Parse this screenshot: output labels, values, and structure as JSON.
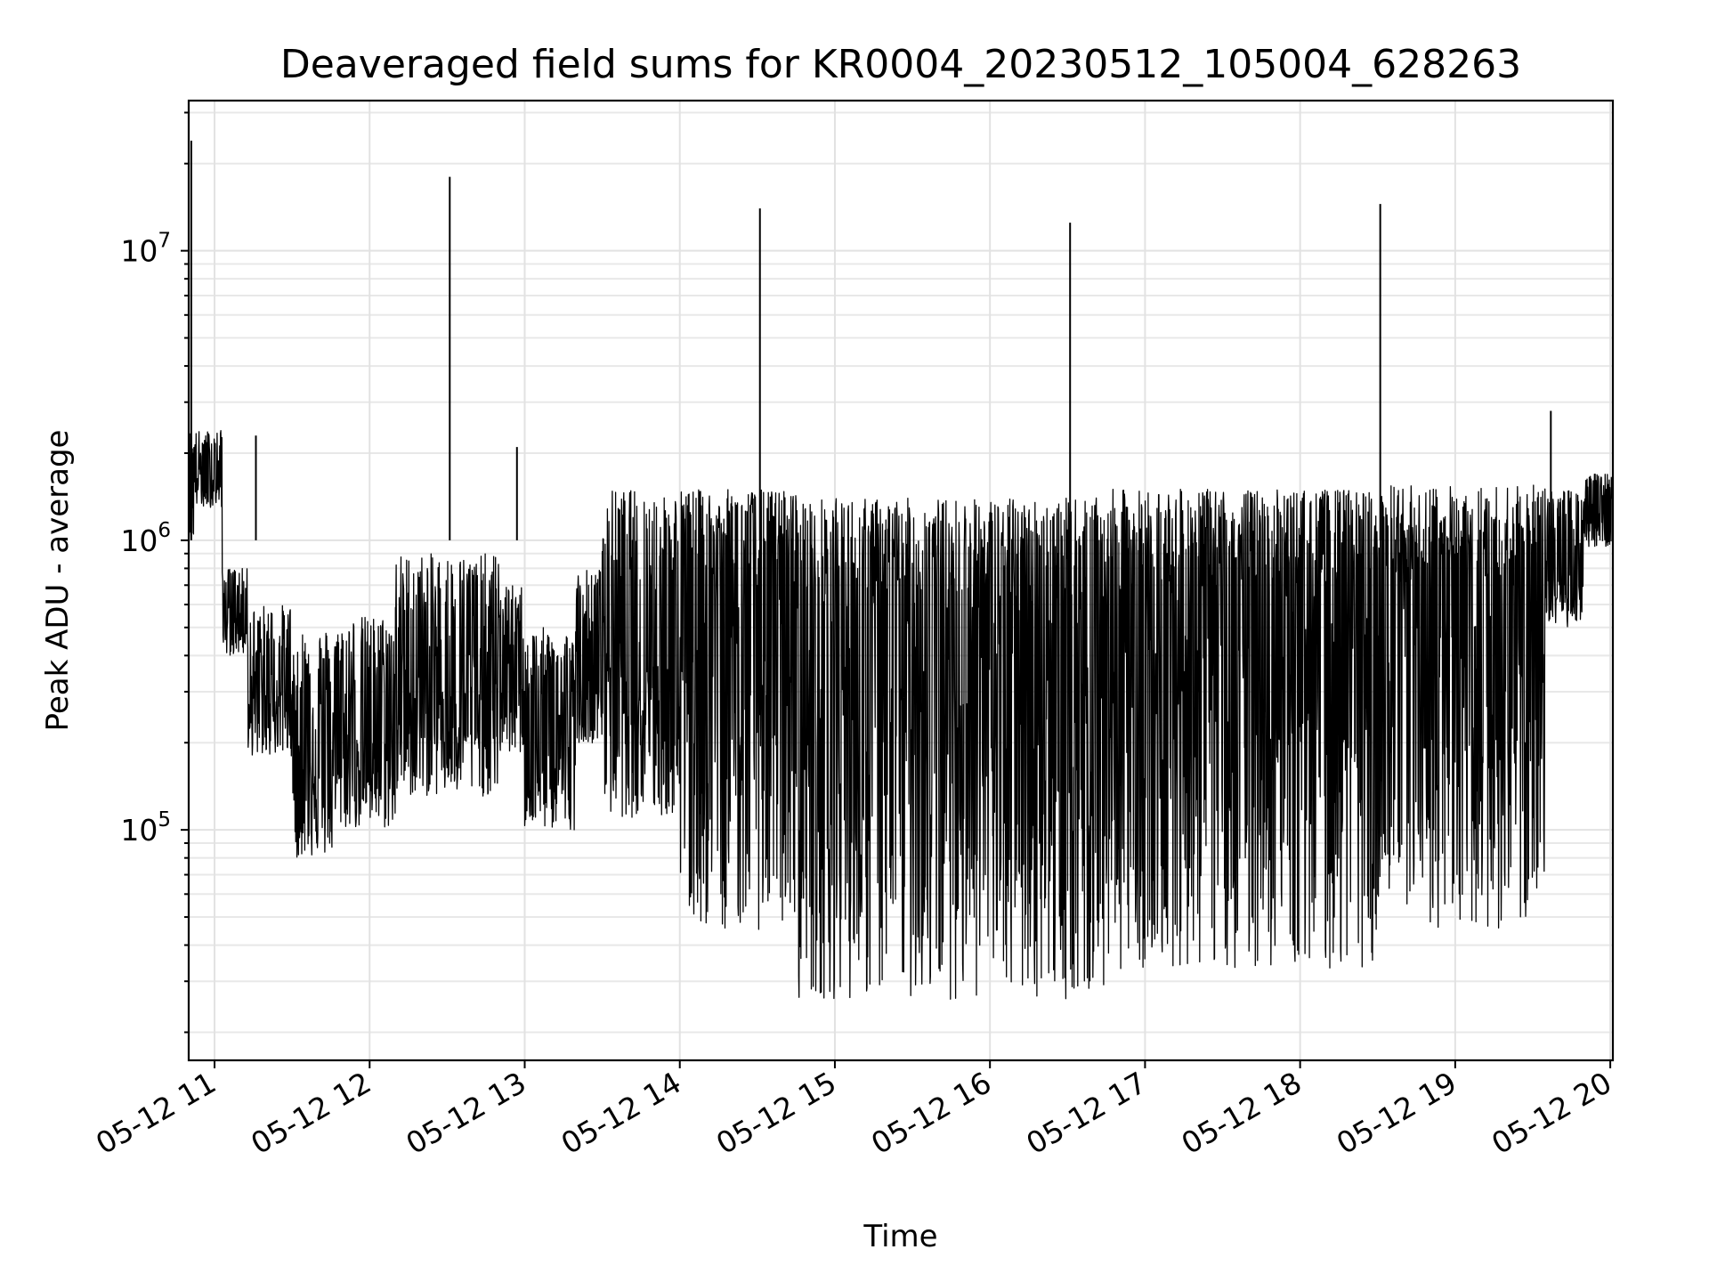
{
  "chart_data": {
    "type": "line",
    "title": "Deaveraged field sums for KR0004_20230512_105004_628263",
    "xlabel": "Time",
    "ylabel": "Peak ADU - average",
    "yscale": "log",
    "ylim": [
      16000,
      33000000
    ],
    "xlim": [
      "2023-05-12 10:50",
      "2023-05-12 20:01"
    ],
    "x_ticks": [
      "05-12 11",
      "05-12 12",
      "05-12 13",
      "05-12 14",
      "05-12 15",
      "05-12 16",
      "05-12 17",
      "05-12 18",
      "05-12 19",
      "05-12 20"
    ],
    "y_ticks": [
      {
        "base": "10",
        "exp": "5",
        "value": 100000
      },
      {
        "base": "10",
        "exp": "6",
        "value": 1000000
      },
      {
        "base": "10",
        "exp": "7",
        "value": 10000000
      }
    ],
    "grid": true,
    "line_color": "#000000",
    "series": [
      {
        "segments": [
          {
            "start": "10:50",
            "end": "10:52",
            "upper": 2400000,
            "lower": 1000000,
            "mean": 1600000
          },
          {
            "start": "10:52",
            "end": "11:03",
            "upper": 2400000,
            "lower": 1300000,
            "mean": 1700000
          },
          {
            "start": "11:03",
            "end": "11:13",
            "upper": 800000,
            "lower": 400000,
            "mean": 600000
          },
          {
            "start": "11:13",
            "end": "11:30",
            "upper": 600000,
            "lower": 180000,
            "mean": 300000
          },
          {
            "start": "11:30",
            "end": "11:48",
            "upper": 500000,
            "lower": 80000,
            "mean": 200000
          },
          {
            "start": "11:48",
            "end": "12:10",
            "upper": 550000,
            "lower": 100000,
            "mean": 220000
          },
          {
            "start": "12:10",
            "end": "12:50",
            "upper": 900000,
            "lower": 130000,
            "mean": 300000
          },
          {
            "start": "12:50",
            "end": "13:00",
            "upper": 700000,
            "lower": 180000,
            "mean": 400000
          },
          {
            "start": "13:00",
            "end": "13:20",
            "upper": 500000,
            "lower": 100000,
            "mean": 200000
          },
          {
            "start": "13:20",
            "end": "13:30",
            "upper": 800000,
            "lower": 200000,
            "mean": 400000
          },
          {
            "start": "13:30",
            "end": "14:00",
            "upper": 1500000,
            "lower": 110000,
            "mean": 450000
          },
          {
            "start": "14:00",
            "end": "14:45",
            "upper": 1500000,
            "lower": 45000,
            "mean": 650000
          },
          {
            "start": "14:45",
            "end": "16:45",
            "upper": 1400000,
            "lower": 26000,
            "mean": 500000
          },
          {
            "start": "16:45",
            "end": "18:30",
            "upper": 1500000,
            "lower": 33000,
            "mean": 600000
          },
          {
            "start": "18:30",
            "end": "19:35",
            "upper": 1550000,
            "lower": 45000,
            "mean": 650000
          },
          {
            "start": "19:35",
            "end": "19:50",
            "upper": 1500000,
            "lower": 500000,
            "mean": 800000
          },
          {
            "start": "19:50",
            "end": "20:01",
            "upper": 1700000,
            "lower": 950000,
            "mean": 1300000
          }
        ],
        "spikes": [
          {
            "time": "10:51",
            "value": 24000000
          },
          {
            "time": "11:16",
            "value": 2300000
          },
          {
            "time": "12:31",
            "value": 18000000
          },
          {
            "time": "12:57",
            "value": 2100000
          },
          {
            "time": "14:31",
            "value": 14000000
          },
          {
            "time": "16:31",
            "value": 12500000
          },
          {
            "time": "18:31",
            "value": 14500000
          },
          {
            "time": "19:37",
            "value": 2800000
          }
        ]
      }
    ]
  }
}
